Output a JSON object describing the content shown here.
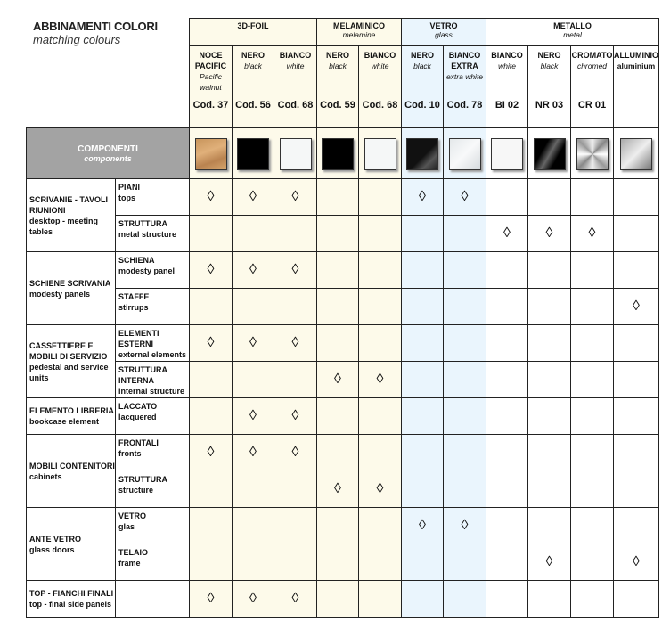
{
  "title": {
    "it": "ABBINAMENTI COLORI",
    "en": "matching colours"
  },
  "components": {
    "it": "COMPONENTI",
    "en": "components"
  },
  "mark_symbol": "◊",
  "groups": [
    {
      "it": "3D-FOIL",
      "en": "",
      "span": 3,
      "bg": "cream"
    },
    {
      "it": "MELAMINICO",
      "en": "melamine",
      "span": 2,
      "bg": "cream"
    },
    {
      "it": "VETRO",
      "en": "glass",
      "span": 2,
      "bg": "blue"
    },
    {
      "it": "METALLO",
      "en": "metal",
      "span": 4,
      "bg": "white"
    }
  ],
  "colors": [
    {
      "it": "NOCE PACIFIC",
      "en": "Pacific walnut",
      "code": "Cod. 37",
      "bg": "cream",
      "swatch": "linear-gradient(160deg,#c8955c,#e0b07a 40%,#b98350 70%,#d6a56c)"
    },
    {
      "it": "NERO",
      "en": "black",
      "code": "Cod. 56",
      "bg": "cream",
      "swatch": "#000000"
    },
    {
      "it": "BIANCO",
      "en": "white",
      "code": "Cod. 68",
      "bg": "cream",
      "swatch": "#f5f7f7"
    },
    {
      "it": "NERO",
      "en": "black",
      "code": "Cod. 59",
      "bg": "cream",
      "swatch": "#000000"
    },
    {
      "it": "BIANCO",
      "en": "white",
      "code": "Cod. 68",
      "bg": "cream",
      "swatch": "#f5f7f7"
    },
    {
      "it": "NERO",
      "en": "black",
      "code": "Cod. 10",
      "bg": "blue",
      "swatch": "linear-gradient(135deg,#111 55%,#555 75%,#222)"
    },
    {
      "it": "BIANCO EXTRA",
      "en": "extra white",
      "code": "Cod. 78",
      "bg": "blue",
      "swatch": "linear-gradient(135deg,#e4e8ea,#f8f9fa 50%,#d5dadd)"
    },
    {
      "it": "BIANCO",
      "en": "white",
      "code": "BI 02",
      "bg": "white",
      "swatch": "#f7f7f7"
    },
    {
      "it": "NERO",
      "en": "black",
      "code": "NR 03",
      "bg": "white",
      "swatch": "linear-gradient(120deg,#000 30%,#666 50%,#000 70%)"
    },
    {
      "it": "CROMATO",
      "en": "chromed",
      "code": "CR 01",
      "bg": "white",
      "swatch": "conic-gradient(#eee,#888,#fff,#999,#eee,#888,#fff,#999,#eee)"
    },
    {
      "it": "ALLUMINIO",
      "en": "aluminium",
      "code": "",
      "bg": "white",
      "swatch": "linear-gradient(135deg,#aaa,#eee 50%,#777)"
    }
  ],
  "rows": [
    {
      "it": "SCRIVANIE - TAVOLI RIUNIONI",
      "en": "desktop - meeting tables",
      "subs": [
        {
          "it": "PIANI",
          "en": "tops",
          "marks": [
            0,
            1,
            2,
            5,
            6
          ]
        },
        {
          "it": "STRUTTURA",
          "en": "metal structure",
          "marks": [
            7,
            8,
            9
          ]
        }
      ]
    },
    {
      "it": "SCHIENE SCRIVANIA",
      "en": "modesty panels",
      "subs": [
        {
          "it": "SCHIENA",
          "en": "modesty panel",
          "marks": [
            0,
            1,
            2
          ]
        },
        {
          "it": "STAFFE",
          "en": "stirrups",
          "marks": [
            10
          ]
        }
      ]
    },
    {
      "it": "CASSETTIERE E MOBILI DI SERVIZIO",
      "en": "pedestal and service units",
      "subs": [
        {
          "it": "ELEMENTI ESTERNI",
          "en": "external elements",
          "marks": [
            0,
            1,
            2
          ]
        },
        {
          "it": "STRUTTURA INTERNA",
          "en": "internal structure",
          "marks": [
            3,
            4
          ]
        }
      ]
    },
    {
      "it": "ELEMENTO LIBRERIA",
      "en": "bookcase element",
      "subs": [
        {
          "it": "LACCATO",
          "en": "lacquered",
          "marks": [
            1,
            2
          ]
        }
      ]
    },
    {
      "it": "MOBILI CONTENITORI",
      "en": "cabinets",
      "subs": [
        {
          "it": "FRONTALI",
          "en": "fronts",
          "marks": [
            0,
            1,
            2
          ]
        },
        {
          "it": "STRUTTURA",
          "en": "structure",
          "marks": [
            3,
            4
          ]
        }
      ]
    },
    {
      "it": "ANTE VETRO",
      "en": "glass doors",
      "subs": [
        {
          "it": "VETRO",
          "en": "glas",
          "marks": [
            5,
            6
          ]
        },
        {
          "it": "TELAIO",
          "en": "frame",
          "marks": [
            8,
            10
          ]
        }
      ]
    },
    {
      "it": "TOP - FIANCHI FINALI",
      "en": "top - final side panels",
      "subs": [
        {
          "it": "",
          "en": "",
          "marks": [
            0,
            1,
            2
          ]
        }
      ]
    }
  ]
}
